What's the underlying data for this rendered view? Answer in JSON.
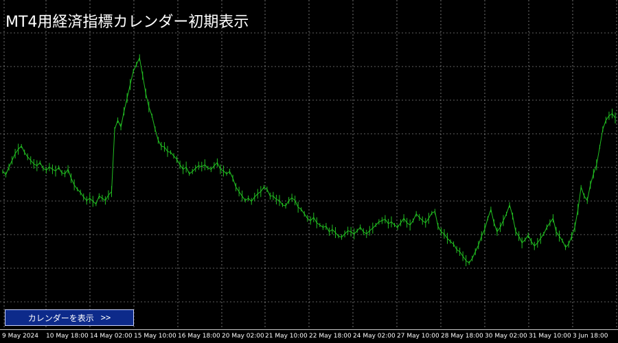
{
  "window": {
    "title": "MT4用経済指標カレンダー初期表示"
  },
  "calendar_button": {
    "label": "カレンダーを表示",
    "arrows": ">>"
  },
  "colors": {
    "background": "#000000",
    "grid": "#ffffff",
    "price_line": "#22c122",
    "button_bg": "#0d2a8a",
    "button_border": "#c9d2ff",
    "text": "#ffffff"
  },
  "time_axis": {
    "labels": [
      "9 May 2024",
      "10 May 18:00",
      "14 May 02:00",
      "15 May 10:00",
      "16 May 18:00",
      "20 May 02:00",
      "21 May 10:00",
      "22 May 18:00",
      "24 May 02:00",
      "27 May 10:00",
      "28 May 18:00",
      "30 May 02:00",
      "31 May 10:00",
      "3 Jun 18:00"
    ]
  },
  "chart_data": {
    "type": "line",
    "series": [
      {
        "values": [
          205,
          198,
          215,
          230,
          245,
          255,
          262,
          248,
          238,
          230,
          222,
          218,
          225,
          212,
          208,
          215,
          210,
          206,
          214,
          202,
          200,
          210,
          190,
          175,
          165,
          158,
          148,
          140,
          145,
          138,
          132,
          150,
          145,
          140,
          152,
          160,
          300,
          320,
          305,
          340,
          370,
          400,
          430,
          445,
          460,
          420,
          380,
          350,
          330,
          300,
          275,
          262,
          260,
          250,
          248,
          240,
          232,
          220,
          210,
          215,
          200,
          205,
          212,
          218,
          216,
          220,
          213,
          210,
          218,
          225,
          210,
          206,
          200,
          205,
          190,
          170,
          160,
          150,
          140,
          145,
          138,
          148,
          155,
          160,
          170,
          165,
          150,
          150,
          142,
          140,
          130,
          128,
          140,
          146,
          140,
          125,
          120,
          110,
          100,
          95,
          102,
          90,
          85,
          80,
          82,
          70,
          75,
          68,
          60,
          58,
          65,
          72,
          70,
          65,
          72,
          80,
          70,
          65,
          72,
          78,
          85,
          92,
          95,
          98,
          88,
          92,
          85,
          80,
          90,
          100,
          90,
          85,
          95,
          110,
          102,
          95,
          90,
          100,
          112,
          115,
          82,
          70,
          65,
          55,
          48,
          42,
          30,
          25,
          15,
          5,
          0,
          10,
          25,
          40,
          60,
          75,
          100,
          120,
          90,
          70,
          80,
          95,
          110,
          130,
          105,
          70,
          60,
          45,
          52,
          62,
          48,
          38,
          45,
          55,
          65,
          80,
          90,
          100,
          70,
          60,
          50,
          35,
          42,
          60,
          80,
          120,
          170,
          150,
          140,
          175,
          200,
          220,
          260,
          300,
          320,
          330,
          335,
          325
        ]
      }
    ]
  }
}
